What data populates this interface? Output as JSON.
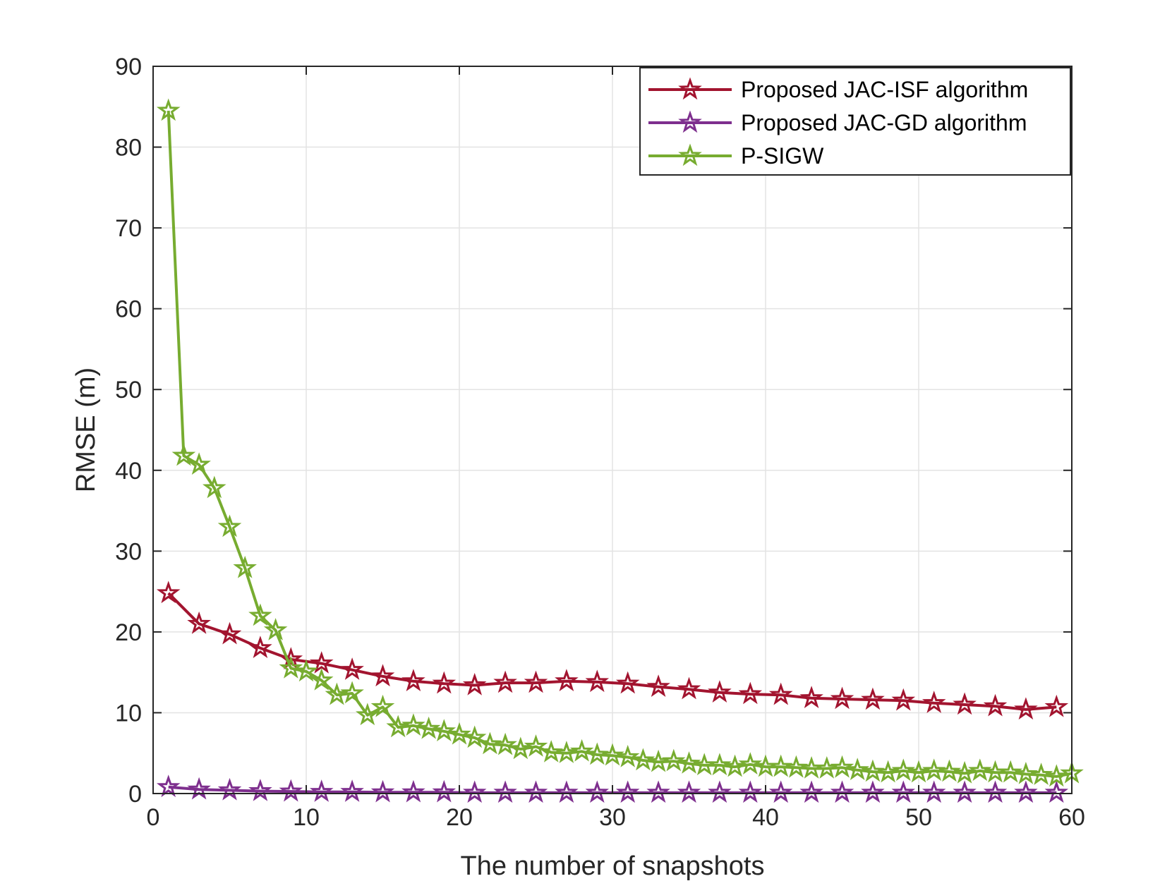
{
  "chart_data": {
    "type": "line",
    "title": "",
    "xlabel": "The number of snapshots",
    "ylabel": "RMSE (m)",
    "xlim": [
      0,
      60
    ],
    "ylim": [
      0,
      90
    ],
    "xticks": [
      0,
      10,
      20,
      30,
      40,
      50,
      60
    ],
    "yticks": [
      0,
      10,
      20,
      30,
      40,
      50,
      60,
      70,
      80,
      90
    ],
    "grid": true,
    "legend_position": "top-right",
    "series": [
      {
        "name": "Proposed JAC-ISF algorithm",
        "color": "#A2142F",
        "marker": "star",
        "x": [
          1,
          3,
          5,
          7,
          9,
          11,
          13,
          15,
          17,
          19,
          21,
          23,
          25,
          27,
          29,
          31,
          33,
          35,
          37,
          39,
          41,
          43,
          45,
          47,
          49,
          51,
          53,
          55,
          57,
          59
        ],
        "values": [
          24.8,
          21.0,
          19.7,
          18.0,
          16.6,
          16.1,
          15.3,
          14.5,
          13.9,
          13.6,
          13.4,
          13.7,
          13.7,
          13.9,
          13.8,
          13.6,
          13.2,
          12.9,
          12.5,
          12.3,
          12.2,
          11.8,
          11.7,
          11.6,
          11.5,
          11.2,
          11.0,
          10.8,
          10.4,
          10.7
        ]
      },
      {
        "name": "Proposed JAC-GD algorithm",
        "color": "#7E2F8E",
        "marker": "star",
        "x": [
          1,
          3,
          5,
          7,
          9,
          11,
          13,
          15,
          17,
          19,
          21,
          23,
          25,
          27,
          29,
          31,
          33,
          35,
          37,
          39,
          41,
          43,
          45,
          47,
          49,
          51,
          53,
          55,
          57,
          59
        ],
        "values": [
          0.8,
          0.5,
          0.4,
          0.3,
          0.25,
          0.2,
          0.2,
          0.15,
          0.15,
          0.15,
          0.1,
          0.1,
          0.1,
          0.1,
          0.1,
          0.1,
          0.1,
          0.1,
          0.1,
          0.1,
          0.1,
          0.1,
          0.1,
          0.1,
          0.1,
          0.1,
          0.1,
          0.1,
          0.1,
          0.1
        ]
      },
      {
        "name": "P-SIGW",
        "color": "#77AC30",
        "marker": "star",
        "x": [
          1,
          2,
          3,
          4,
          5,
          6,
          7,
          8,
          9,
          10,
          11,
          12,
          13,
          14,
          15,
          16,
          17,
          18,
          19,
          20,
          21,
          22,
          23,
          24,
          25,
          26,
          27,
          28,
          29,
          30,
          31,
          32,
          33,
          34,
          35,
          36,
          37,
          38,
          39,
          40,
          41,
          42,
          43,
          44,
          45,
          46,
          47,
          48,
          49,
          50,
          51,
          52,
          53,
          54,
          55,
          56,
          57,
          58,
          59,
          60
        ],
        "values": [
          84.5,
          41.8,
          40.7,
          37.8,
          33.0,
          27.9,
          22.0,
          20.2,
          15.5,
          15.1,
          14.0,
          12.2,
          12.4,
          9.7,
          10.7,
          8.2,
          8.4,
          8.0,
          7.7,
          7.3,
          6.9,
          6.1,
          6.0,
          5.5,
          5.8,
          5.1,
          5.0,
          5.2,
          4.8,
          4.7,
          4.5,
          4.1,
          3.9,
          4.0,
          3.7,
          3.5,
          3.5,
          3.3,
          3.6,
          3.3,
          3.3,
          3.2,
          3.1,
          3.1,
          3.2,
          2.9,
          2.7,
          2.6,
          2.8,
          2.6,
          2.8,
          2.7,
          2.5,
          2.8,
          2.6,
          2.6,
          2.4,
          2.3,
          2.1,
          2.5
        ]
      }
    ]
  }
}
